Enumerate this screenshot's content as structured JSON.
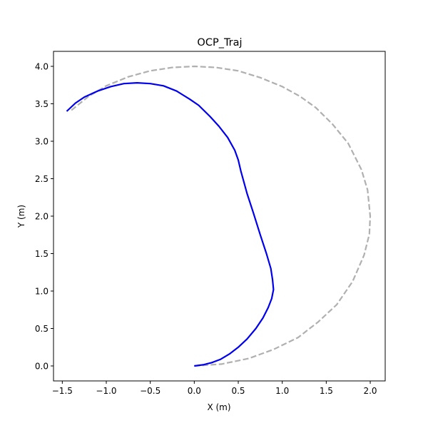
{
  "chart_data": {
    "type": "line",
    "title": "OCP_Traj",
    "xlabel": "X (m)",
    "ylabel": "Y (m)",
    "xlim": [
      -1.6,
      2.17
    ],
    "ylim": [
      -0.2,
      4.2
    ],
    "xticks": [
      -1.5,
      -1.0,
      -0.5,
      0.0,
      0.5,
      1.0,
      1.5,
      2.0
    ],
    "xtick_labels": [
      "−1.5",
      "−1.0",
      "−0.5",
      "0.0",
      "0.5",
      "1.0",
      "1.5",
      "2.0"
    ],
    "yticks": [
      0.0,
      0.5,
      1.0,
      1.5,
      2.0,
      2.5,
      3.0,
      3.5,
      4.0
    ],
    "ytick_labels": [
      "0.0",
      "0.5",
      "1.0",
      "1.5",
      "2.0",
      "2.5",
      "3.0",
      "3.5",
      "4.0"
    ],
    "grid": false,
    "series": [
      {
        "style": "dashed",
        "color": "#b0b0b0",
        "points": [
          [
            0.0,
            0.0
          ],
          [
            0.31,
            0.025
          ],
          [
            0.62,
            0.1
          ],
          [
            0.9,
            0.22
          ],
          [
            1.18,
            0.38
          ],
          [
            1.41,
            0.59
          ],
          [
            1.62,
            0.82
          ],
          [
            1.8,
            1.13
          ],
          [
            1.93,
            1.48
          ],
          [
            1.99,
            1.76
          ],
          [
            2.0,
            2.0
          ],
          [
            1.97,
            2.35
          ],
          [
            1.9,
            2.62
          ],
          [
            1.75,
            2.97
          ],
          [
            1.57,
            3.23
          ],
          [
            1.38,
            3.45
          ],
          [
            1.2,
            3.6
          ],
          [
            1.0,
            3.73
          ],
          [
            0.75,
            3.85
          ],
          [
            0.5,
            3.94
          ],
          [
            0.25,
            3.985
          ],
          [
            0.0,
            4.0
          ],
          [
            -0.25,
            3.985
          ],
          [
            -0.5,
            3.94
          ],
          [
            -0.75,
            3.86
          ],
          [
            -1.0,
            3.74
          ],
          [
            -1.2,
            3.6
          ],
          [
            -1.4,
            3.41
          ]
        ]
      },
      {
        "style": "solid",
        "color": "#0000ee",
        "points": [
          [
            0.0,
            0.0
          ],
          [
            0.1,
            0.015
          ],
          [
            0.2,
            0.045
          ],
          [
            0.3,
            0.09
          ],
          [
            0.4,
            0.16
          ],
          [
            0.5,
            0.25
          ],
          [
            0.6,
            0.36
          ],
          [
            0.7,
            0.5
          ],
          [
            0.78,
            0.64
          ],
          [
            0.84,
            0.78
          ],
          [
            0.88,
            0.9
          ],
          [
            0.9,
            1.02
          ],
          [
            0.89,
            1.15
          ],
          [
            0.87,
            1.3
          ],
          [
            0.82,
            1.5
          ],
          [
            0.75,
            1.75
          ],
          [
            0.67,
            2.05
          ],
          [
            0.6,
            2.3
          ],
          [
            0.53,
            2.6
          ],
          [
            0.5,
            2.75
          ],
          [
            0.46,
            2.88
          ],
          [
            0.38,
            3.05
          ],
          [
            0.28,
            3.2
          ],
          [
            0.18,
            3.33
          ],
          [
            0.05,
            3.48
          ],
          [
            -0.05,
            3.56
          ],
          [
            -0.2,
            3.67
          ],
          [
            -0.35,
            3.74
          ],
          [
            -0.5,
            3.77
          ],
          [
            -0.65,
            3.78
          ],
          [
            -0.8,
            3.77
          ],
          [
            -0.95,
            3.73
          ],
          [
            -1.1,
            3.67
          ],
          [
            -1.25,
            3.59
          ],
          [
            -1.35,
            3.51
          ],
          [
            -1.45,
            3.4
          ]
        ]
      }
    ]
  }
}
